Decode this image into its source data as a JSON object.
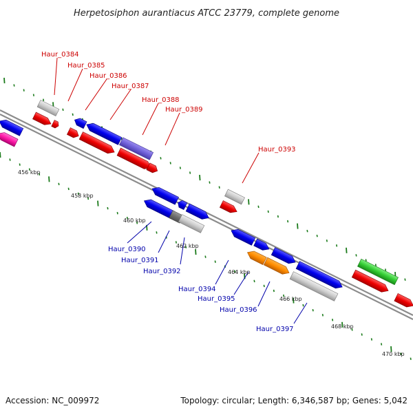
{
  "title": "Herpetosiphon aurantiacus ATCC 23779, complete genome",
  "footer": {
    "accession": "Accession: NC_009972",
    "summary": "Topology: circular; Length: 6,346,587 bp; Genes: 5,042"
  },
  "colors": {
    "forward_label": "#cc0000",
    "reverse_label": "#0000aa",
    "tick": "#1a7a1a",
    "backbone": "#8c8c8c"
  },
  "kbp_labels": [
    "456 kbp",
    "458 kbp",
    "460 kbp",
    "462 kbp",
    "464 kbp",
    "466 kbp",
    "468 kbp",
    "470 kbp"
  ],
  "forward_gene_labels": [
    "Haur_0384",
    "Haur_0385",
    "Haur_0386",
    "Haur_0387",
    "Haur_0388",
    "Haur_0389",
    "Haur_0393"
  ],
  "reverse_gene_labels": [
    "Haur_0390",
    "Haur_0391",
    "Haur_0392",
    "Haur_0394",
    "Haur_0395",
    "Haur_0396",
    "Haur_0397"
  ]
}
